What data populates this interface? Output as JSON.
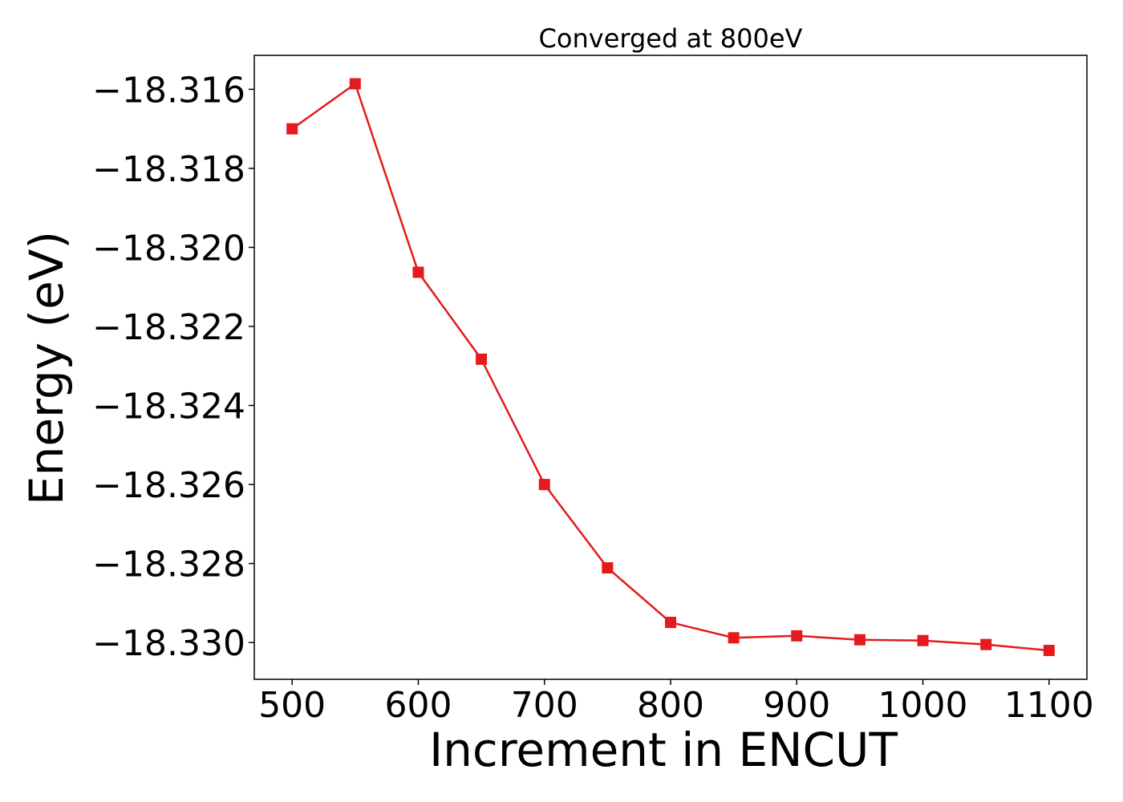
{
  "chart_data": {
    "type": "line",
    "title": "Converged at 800eV",
    "xlabel": "Increment in ENCUT",
    "ylabel": "Energy (eV)",
    "xlim": [
      470,
      1130
    ],
    "ylim": [
      -18.33093,
      -18.31514
    ],
    "x_ticks": [
      500,
      600,
      700,
      800,
      900,
      1000,
      1100
    ],
    "x_tick_labels": [
      "500",
      "600",
      "700",
      "800",
      "900",
      "1000",
      "1100"
    ],
    "y_ticks": [
      -18.316,
      -18.318,
      -18.32,
      -18.322,
      -18.324,
      -18.326,
      -18.328,
      -18.33
    ],
    "y_tick_labels": [
      "−18.316",
      "−18.318",
      "−18.320",
      "−18.322",
      "−18.324",
      "−18.326",
      "−18.328",
      "−18.330"
    ],
    "grid": false,
    "series": [
      {
        "color": "#e41a1c",
        "marker": "square",
        "x": [
          500,
          550,
          600,
          650,
          700,
          750,
          800,
          850,
          900,
          950,
          1000,
          1050,
          1100
        ],
        "y": [
          -18.317,
          -18.31586,
          -18.32063,
          -18.32283,
          -18.326,
          -18.32811,
          -18.32949,
          -18.32988,
          -18.32983,
          -18.32993,
          -18.32995,
          -18.33005,
          -18.3302
        ]
      }
    ]
  }
}
